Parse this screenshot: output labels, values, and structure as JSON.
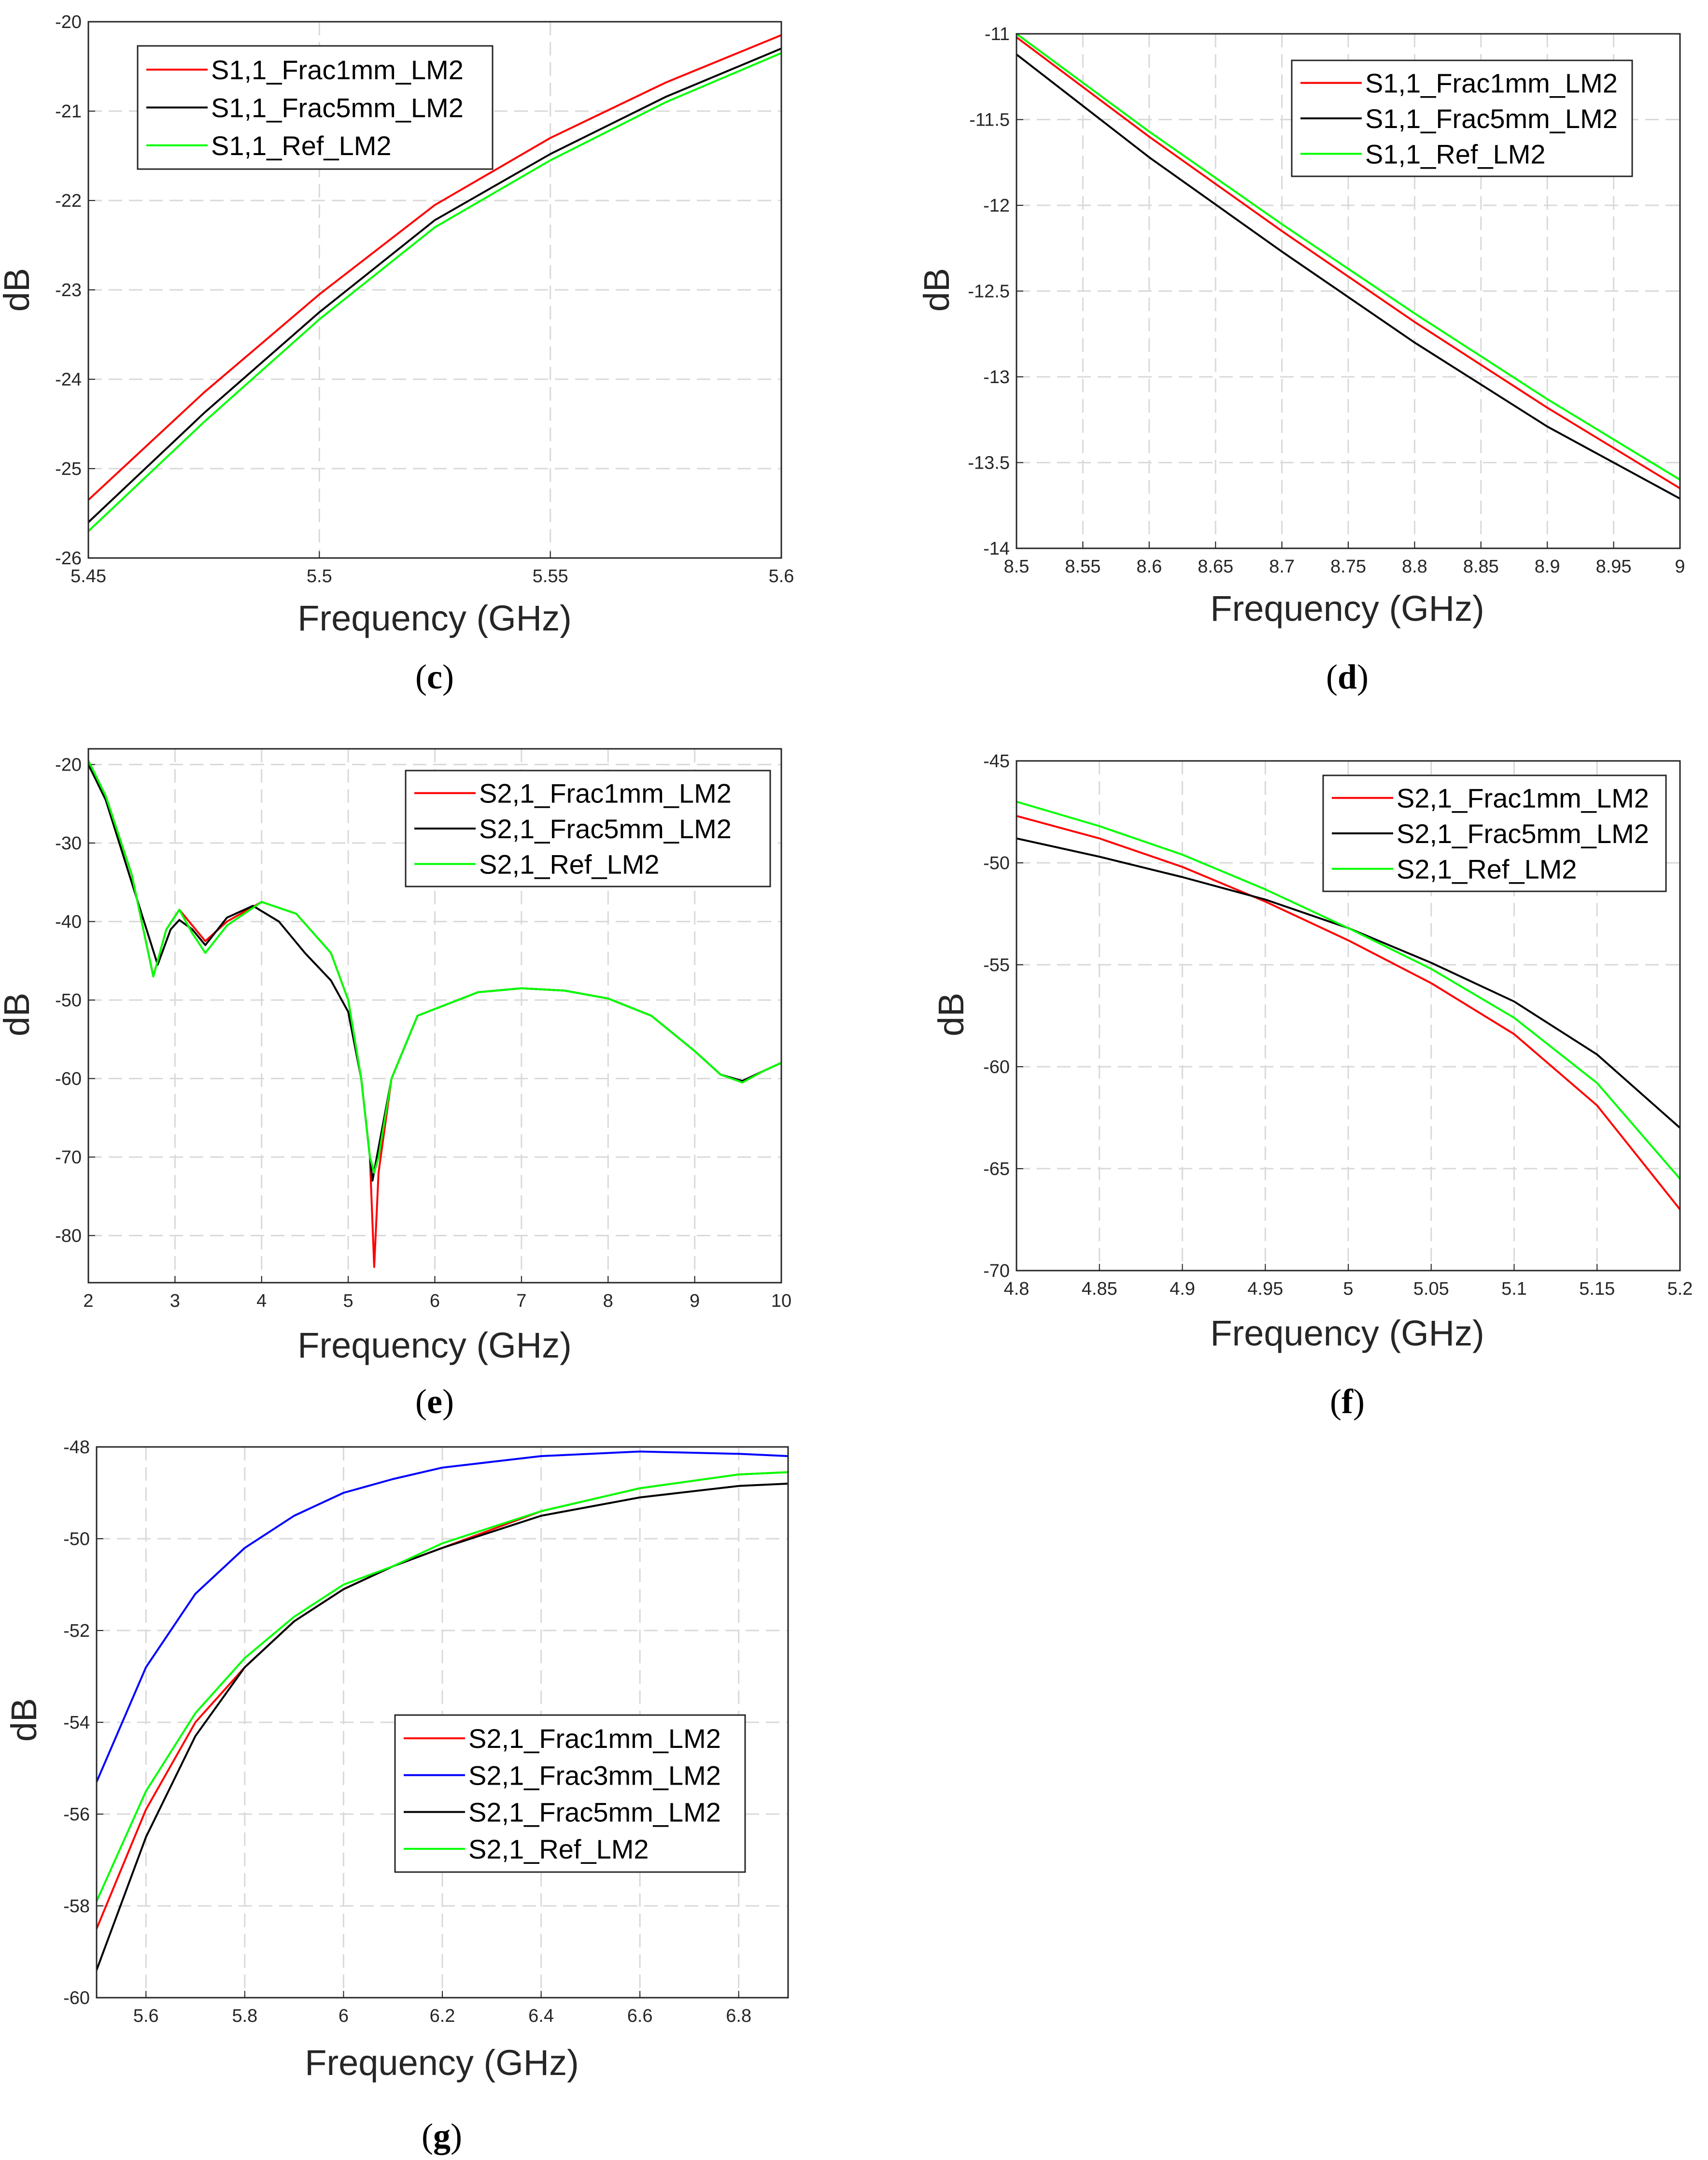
{
  "figure": {
    "colors": {
      "red": "#ff0000",
      "black": "#000000",
      "green": "#00ff00",
      "blue": "#0000ff",
      "grid": "#d9d9d9",
      "axis": "#262626"
    }
  },
  "chart_data": [
    {
      "id": "c",
      "type": "line",
      "caption": {
        "open": "(",
        "letter": "c",
        "close": ")"
      },
      "xlabel": "Frequency (GHz)",
      "ylabel": "dB",
      "xlim": [
        5.45,
        5.6
      ],
      "ylim": [
        -26,
        -20
      ],
      "xticks": [
        "5.45",
        "5.5",
        "5.55",
        "5.6"
      ],
      "yticks": [
        "-20",
        "-21",
        "-22",
        "-23",
        "-24",
        "-25",
        "-26"
      ],
      "legend_position": "top-left",
      "series": [
        {
          "name": "S1,1_Frac1mm_LM2",
          "color": "red",
          "x": [
            5.45,
            5.475,
            5.5,
            5.525,
            5.55,
            5.575,
            5.6
          ],
          "y": [
            -25.35,
            -24.15,
            -23.05,
            -22.05,
            -21.3,
            -20.68,
            -20.15
          ]
        },
        {
          "name": "S1,1_Frac5mm_LM2",
          "color": "black",
          "x": [
            5.45,
            5.475,
            5.5,
            5.525,
            5.55,
            5.575,
            5.6
          ],
          "y": [
            -25.6,
            -24.38,
            -23.25,
            -22.22,
            -21.48,
            -20.84,
            -20.3
          ]
        },
        {
          "name": "S1,1_Ref_LM2",
          "color": "green",
          "x": [
            5.45,
            5.475,
            5.5,
            5.525,
            5.55,
            5.575,
            5.6
          ],
          "y": [
            -25.7,
            -24.48,
            -23.33,
            -22.3,
            -21.55,
            -20.9,
            -20.35
          ]
        }
      ]
    },
    {
      "id": "d",
      "type": "line",
      "caption": {
        "open": "(",
        "letter": "d",
        "close": ")"
      },
      "xlabel": "Frequency (GHz)",
      "ylabel": "dB",
      "xlim": [
        8.5,
        9
      ],
      "ylim": [
        -14,
        -11
      ],
      "xticks": [
        "8.5",
        "8.55",
        "8.6",
        "8.65",
        "8.7",
        "8.75",
        "8.8",
        "8.85",
        "8.9",
        "8.95",
        "9"
      ],
      "yticks": [
        "-11",
        "-11.5",
        "-12",
        "-12.5",
        "-13",
        "-13.5",
        "-14"
      ],
      "legend_position": "top-right",
      "series": [
        {
          "name": "S1,1_Frac1mm_LM2",
          "color": "red",
          "x": [
            8.5,
            8.6,
            8.7,
            8.8,
            8.9,
            9.0
          ],
          "y": [
            -11.02,
            -11.6,
            -12.15,
            -12.68,
            -13.18,
            -13.65
          ]
        },
        {
          "name": "S1,1_Frac5mm_LM2",
          "color": "black",
          "x": [
            8.5,
            8.6,
            8.7,
            8.8,
            8.9,
            9.0
          ],
          "y": [
            -11.12,
            -11.72,
            -12.27,
            -12.8,
            -13.29,
            -13.71
          ]
        },
        {
          "name": "S1,1_Ref_LM2",
          "color": "green",
          "x": [
            8.5,
            8.6,
            8.7,
            8.8,
            8.9,
            9.0
          ],
          "y": [
            -11.0,
            -11.57,
            -12.11,
            -12.63,
            -13.13,
            -13.6
          ]
        }
      ]
    },
    {
      "id": "e",
      "type": "line",
      "caption": {
        "open": "(",
        "letter": "e",
        "close": ")"
      },
      "xlabel": "Frequency (GHz)",
      "ylabel": "dB",
      "xlim": [
        2,
        10
      ],
      "ylim": [
        -86,
        -18
      ],
      "xticks": [
        "2",
        "3",
        "4",
        "5",
        "6",
        "7",
        "8",
        "9",
        "10"
      ],
      "yticks": [
        "-20",
        "-30",
        "-40",
        "-50",
        "-60",
        "-70",
        "-80"
      ],
      "legend_position": "top-right",
      "series": [
        {
          "name": "S2,1_Frac1mm_LM2",
          "color": "red",
          "x": [
            2,
            2.2,
            2.5,
            2.75,
            2.9,
            3.05,
            3.2,
            3.35,
            3.6,
            4.0,
            4.4,
            4.8,
            5.0,
            5.15,
            5.25,
            5.3,
            5.35,
            5.5,
            5.8,
            6.5,
            7.0,
            7.5,
            8.0,
            8.5,
            9.0,
            9.3,
            9.55,
            9.8,
            10
          ],
          "y": [
            -19.5,
            -24,
            -34,
            -47,
            -41,
            -38.5,
            -40.5,
            -42.5,
            -40,
            -37.5,
            -39,
            -44,
            -50,
            -60,
            -70,
            -84,
            -72,
            -60,
            -52,
            -49,
            -48.5,
            -48.8,
            -49.8,
            -52,
            -56.5,
            -59.5,
            -60.5,
            -59,
            -58
          ]
        },
        {
          "name": "S2,1_Frac5mm_LM2",
          "color": "black",
          "x": [
            2,
            2.2,
            2.5,
            2.8,
            2.95,
            3.05,
            3.2,
            3.35,
            3.6,
            3.9,
            4.2,
            4.5,
            4.8,
            5.0,
            5.15,
            5.28,
            5.33,
            5.5,
            5.8,
            6.5,
            7.0,
            7.5,
            8.0,
            8.5,
            9.0,
            9.3,
            9.55,
            9.8,
            10
          ],
          "y": [
            -20,
            -24.5,
            -35,
            -45.5,
            -41,
            -39.8,
            -41,
            -43,
            -39.5,
            -38,
            -40,
            -44,
            -47.5,
            -51.5,
            -60,
            -73,
            -70,
            -60,
            -52,
            -49,
            -48.5,
            -48.8,
            -49.8,
            -52,
            -56.5,
            -59.5,
            -60.3,
            -59,
            -58
          ]
        },
        {
          "name": "S2,1_Ref_LM2",
          "color": "green",
          "x": [
            2,
            2.2,
            2.5,
            2.75,
            2.9,
            3.05,
            3.2,
            3.35,
            3.6,
            4.0,
            4.4,
            4.8,
            5.0,
            5.15,
            5.25,
            5.3,
            5.35,
            5.5,
            5.8,
            6.5,
            7.0,
            7.5,
            8.0,
            8.5,
            9.0,
            9.3,
            9.55,
            9.8,
            10
          ],
          "y": [
            -19.5,
            -24,
            -34,
            -47,
            -41,
            -38.5,
            -41.5,
            -44,
            -40.5,
            -37.5,
            -39,
            -44,
            -50,
            -60,
            -70,
            -72,
            -70,
            -60,
            -52,
            -49,
            -48.5,
            -48.8,
            -49.8,
            -52,
            -56.5,
            -59.5,
            -60.5,
            -59,
            -58
          ]
        }
      ]
    },
    {
      "id": "f",
      "type": "line",
      "caption": {
        "open": "(",
        "letter": "f",
        "close": ")"
      },
      "xlabel": "Frequency (GHz)",
      "ylabel": "dB",
      "xlim": [
        4.8,
        5.2
      ],
      "ylim": [
        -70,
        -45
      ],
      "xticks": [
        "4.8",
        "4.85",
        "4.9",
        "4.95",
        "5",
        "5.05",
        "5.1",
        "5.15",
        "5.2"
      ],
      "yticks": [
        "-45",
        "-50",
        "-55",
        "-60",
        "-65",
        "-70"
      ],
      "legend_position": "top-right",
      "series": [
        {
          "name": "S2,1_Frac1mm_LM2",
          "color": "red",
          "x": [
            4.8,
            4.85,
            4.9,
            4.95,
            5.0,
            5.05,
            5.1,
            5.15,
            5.2
          ],
          "y": [
            -47.7,
            -48.8,
            -50.2,
            -51.9,
            -53.8,
            -55.9,
            -58.4,
            -61.9,
            -67.0
          ]
        },
        {
          "name": "S2,1_Frac5mm_LM2",
          "color": "black",
          "x": [
            4.8,
            4.85,
            4.9,
            4.95,
            5.0,
            5.05,
            5.1,
            5.15,
            5.2
          ],
          "y": [
            -48.8,
            -49.7,
            -50.7,
            -51.8,
            -53.2,
            -54.9,
            -56.8,
            -59.4,
            -63.0
          ]
        },
        {
          "name": "S2,1_Ref_LM2",
          "color": "green",
          "x": [
            4.8,
            4.85,
            4.9,
            4.95,
            5.0,
            5.05,
            5.1,
            5.15,
            5.2
          ],
          "y": [
            -47.0,
            -48.2,
            -49.6,
            -51.3,
            -53.2,
            -55.2,
            -57.6,
            -60.8,
            -65.5
          ]
        }
      ]
    },
    {
      "id": "g",
      "type": "line",
      "caption": {
        "open": "(",
        "letter": "g",
        "close": ")"
      },
      "xlabel": "Frequency (GHz)",
      "ylabel": "dB",
      "xlim": [
        5.5,
        6.9
      ],
      "ylim": [
        -60,
        -48
      ],
      "xticks": [
        "5.6",
        "5.8",
        "6",
        "6.2",
        "6.4",
        "6.6",
        "6.8"
      ],
      "yticks": [
        "-48",
        "-50",
        "-52",
        "-54",
        "-56",
        "-58",
        "-60"
      ],
      "legend_position": "center-right",
      "series": [
        {
          "name": "S2,1_Frac1mm_LM2",
          "color": "red",
          "x": [
            5.5,
            5.6,
            5.7,
            5.8,
            5.9,
            6.0,
            6.1,
            6.2,
            6.4,
            6.6,
            6.8,
            6.9
          ],
          "y": [
            -58.5,
            -55.9,
            -54.0,
            -52.8,
            -51.8,
            -51.1,
            -50.6,
            -50.2,
            -49.4,
            -48.9,
            -48.6,
            -48.55
          ]
        },
        {
          "name": "S2,1_Frac3mm_LM2",
          "color": "blue",
          "x": [
            5.5,
            5.6,
            5.7,
            5.8,
            5.9,
            6.0,
            6.1,
            6.2,
            6.4,
            6.6,
            6.8,
            6.9
          ],
          "y": [
            -55.3,
            -52.8,
            -51.2,
            -50.2,
            -49.5,
            -49.0,
            -48.7,
            -48.45,
            -48.2,
            -48.1,
            -48.15,
            -48.2
          ]
        },
        {
          "name": "S2,1_Frac5mm_LM2",
          "color": "black",
          "x": [
            5.5,
            5.6,
            5.7,
            5.8,
            5.9,
            6.0,
            6.1,
            6.2,
            6.4,
            6.6,
            6.8,
            6.9
          ],
          "y": [
            -59.4,
            -56.5,
            -54.3,
            -52.8,
            -51.8,
            -51.1,
            -50.6,
            -50.2,
            -49.5,
            -49.1,
            -48.85,
            -48.8
          ]
        },
        {
          "name": "S2,1_Ref_LM2",
          "color": "green",
          "x": [
            5.5,
            5.6,
            5.7,
            5.8,
            5.9,
            6.0,
            6.1,
            6.2,
            6.4,
            6.6,
            6.8,
            6.9
          ],
          "y": [
            -57.9,
            -55.5,
            -53.8,
            -52.6,
            -51.7,
            -51.0,
            -50.6,
            -50.1,
            -49.4,
            -48.9,
            -48.6,
            -48.55
          ]
        }
      ]
    }
  ]
}
